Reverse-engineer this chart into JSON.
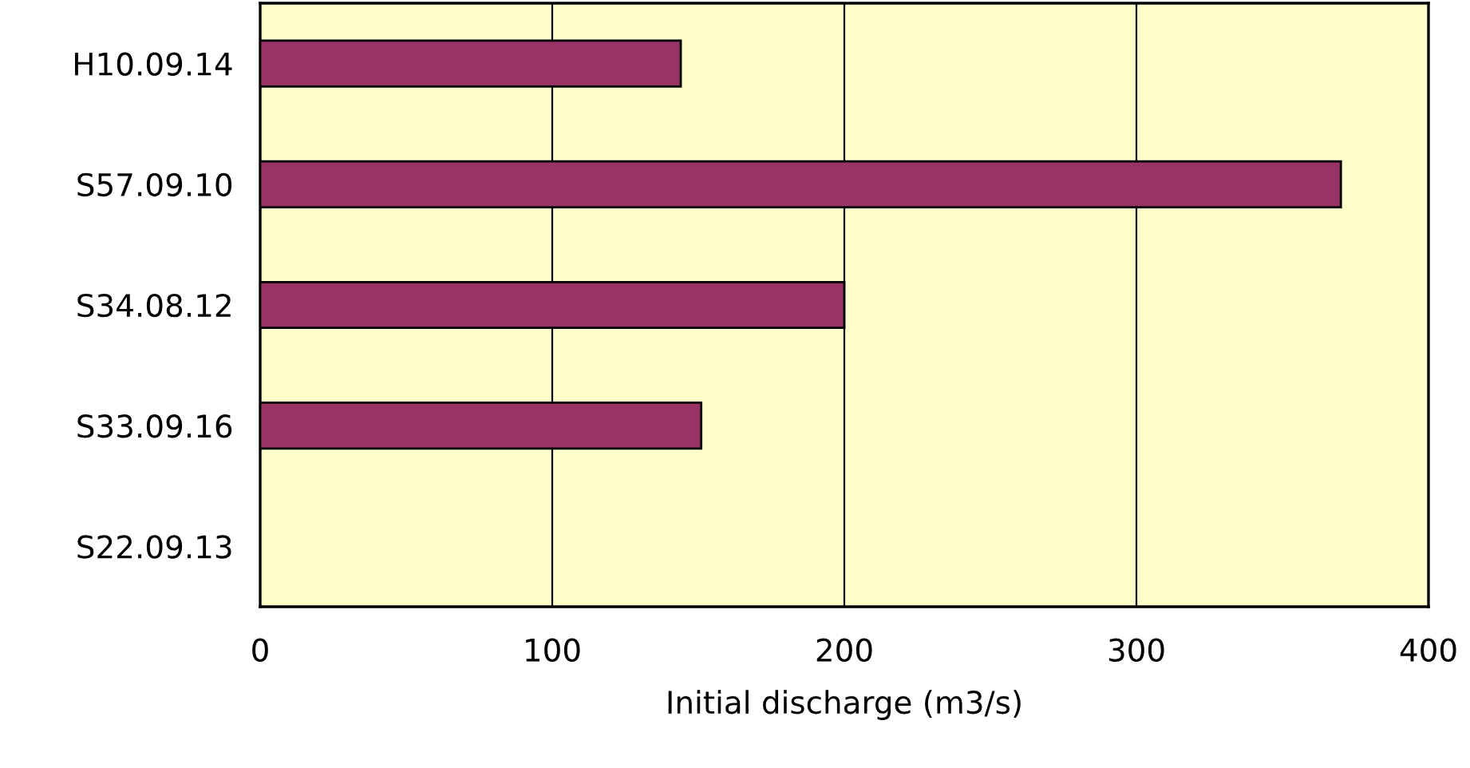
{
  "chart_data": {
    "type": "bar",
    "orientation": "horizontal",
    "xlabel": "Initial discharge (m3/s)",
    "categories": [
      "H10.09.14",
      "S57.09.10",
      "S34.08.12",
      "S33.09.16",
      "S22.09.13"
    ],
    "values": [
      144,
      370,
      200,
      151,
      null
    ],
    "color": "#993366",
    "xlim": [
      0,
      400
    ],
    "xticks": [
      0,
      100,
      200,
      300,
      400
    ],
    "grid": "x"
  }
}
